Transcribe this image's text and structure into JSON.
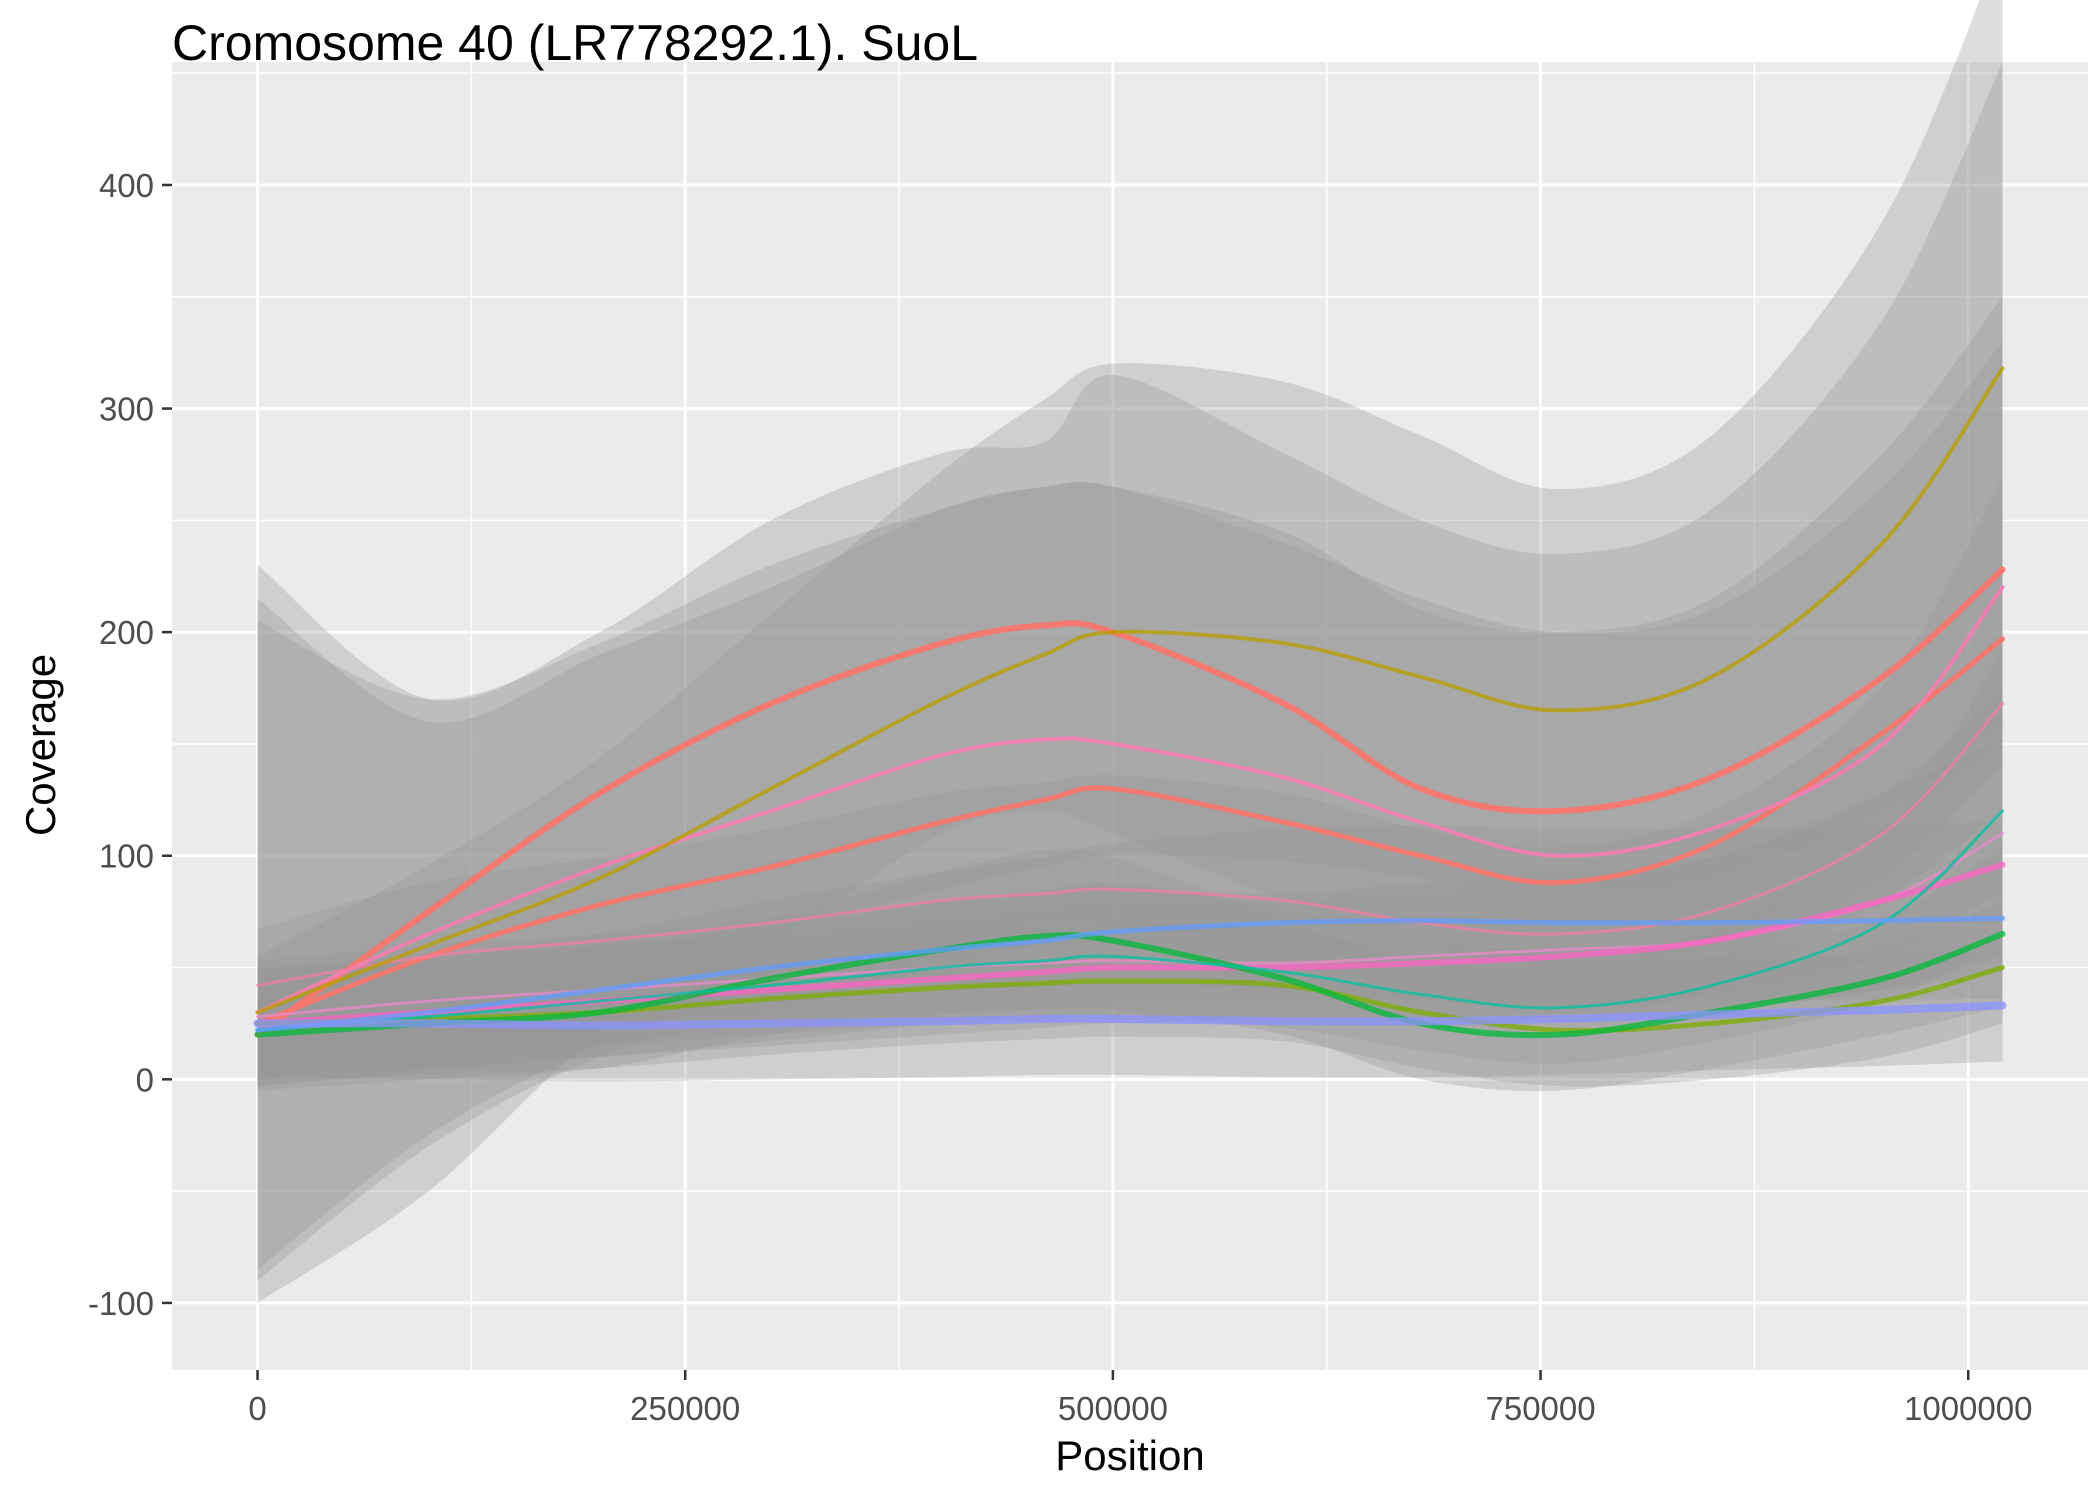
{
  "chart_data": {
    "type": "line",
    "title": "Cromosome 40 (LR778292.1). SuoL",
    "xlabel": "Position",
    "ylabel": "Coverage",
    "xlim": [
      -50000,
      1070000
    ],
    "ylim": [
      -130,
      455
    ],
    "x_ticks": [
      0,
      250000,
      500000,
      750000,
      1000000
    ],
    "x_tick_labels": [
      "0",
      "250000",
      "500000",
      "750000",
      "1000000"
    ],
    "y_ticks": [
      -100,
      0,
      100,
      200,
      300,
      400
    ],
    "y_tick_labels": [
      "-100",
      "0",
      "100",
      "200",
      "300",
      "400"
    ],
    "grid": true,
    "legend": "none",
    "panel_color": "#EBEBEB",
    "grid_color": "#FFFFFF",
    "ribbon_color": "#999999",
    "x": [
      0,
      100000,
      200000,
      300000,
      400000,
      460000,
      500000,
      600000,
      680000,
      760000,
      850000,
      950000,
      1020000
    ],
    "series": [
      {
        "color": "#F8766D",
        "width": 6,
        "values": [
          20,
          75,
          128,
          168,
          195,
          203,
          200,
          168,
          130,
          120,
          135,
          180,
          228
        ],
        "ribbon_low": [
          -100,
          -50,
          20,
          60,
          110,
          120,
          110,
          80,
          60,
          50,
          60,
          110,
          150
        ],
        "ribbon_high": [
          230,
          170,
          200,
          250,
          280,
          285,
          315,
          280,
          250,
          235,
          255,
          340,
          455
        ]
      },
      {
        "color": "#F8766D",
        "width": 5,
        "values": [
          25,
          55,
          78,
          95,
          115,
          125,
          130,
          115,
          100,
          88,
          105,
          155,
          197
        ],
        "ribbon_low": [
          -90,
          -30,
          10,
          30,
          50,
          60,
          60,
          50,
          40,
          30,
          40,
          80,
          120
        ],
        "ribbon_high": [
          215,
          160,
          190,
          220,
          255,
          265,
          265,
          245,
          210,
          200,
          215,
          280,
          350
        ]
      },
      {
        "color": "#F07FB0",
        "width": 4,
        "values": [
          30,
          65,
          95,
          120,
          145,
          152,
          150,
          135,
          115,
          100,
          112,
          150,
          220
        ],
        "ribbon_low": [
          -85,
          -25,
          15,
          40,
          60,
          70,
          70,
          60,
          50,
          40,
          50,
          90,
          140
        ],
        "ribbon_high": [
          205,
          170,
          195,
          230,
          255,
          265,
          265,
          240,
          215,
          200,
          210,
          265,
          330
        ]
      },
      {
        "color": "#F27DA0",
        "width": 3,
        "values": [
          42,
          55,
          62,
          70,
          80,
          83,
          85,
          80,
          70,
          65,
          75,
          110,
          168
        ]
      },
      {
        "color": "#E88AC8",
        "width": 3,
        "values": [
          28,
          35,
          40,
          45,
          50,
          52,
          53,
          52,
          55,
          58,
          62,
          80,
          110
        ]
      },
      {
        "color": "#FF61C3",
        "width": 6,
        "values": [
          25,
          30,
          35,
          40,
          45,
          48,
          50,
          50,
          52,
          55,
          62,
          80,
          96
        ]
      },
      {
        "color": "#B79F00",
        "width": 4,
        "values": [
          30,
          60,
          90,
          130,
          170,
          190,
          200,
          195,
          180,
          165,
          180,
          240,
          318
        ]
      },
      {
        "color": "#7CAE00",
        "width": 5,
        "values": [
          25,
          27,
          30,
          36,
          41,
          43,
          44,
          42,
          30,
          22,
          25,
          35,
          50
        ]
      },
      {
        "color": "#00BA38",
        "width": 6,
        "values": [
          20,
          25,
          30,
          45,
          58,
          64,
          62,
          45,
          25,
          20,
          30,
          45,
          65
        ]
      },
      {
        "color": "#00C19F",
        "width": 3,
        "values": [
          22,
          28,
          35,
          42,
          50,
          53,
          55,
          48,
          38,
          32,
          42,
          70,
          120
        ]
      },
      {
        "color": "#619CFF",
        "width": 5,
        "values": [
          22,
          30,
          40,
          50,
          58,
          62,
          66,
          70,
          71,
          70,
          70,
          71,
          72
        ]
      },
      {
        "color": "#8B93FF",
        "width": 8,
        "values": [
          25,
          25,
          24,
          25,
          26,
          27,
          27,
          26,
          26,
          27,
          29,
          31,
          33
        ]
      }
    ]
  }
}
